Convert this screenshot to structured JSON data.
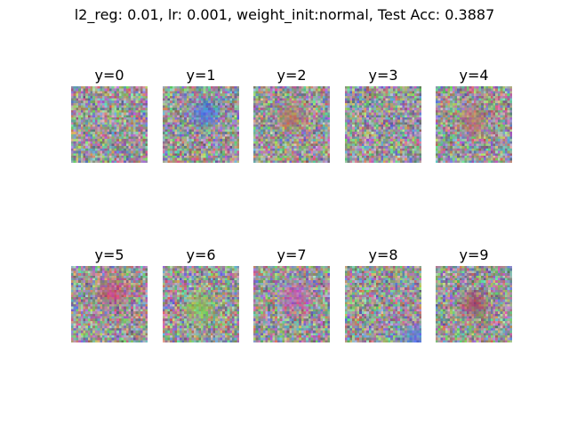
{
  "chart_data": {
    "type": "heatmap",
    "title": "l2_reg: 0.01, lr: 0.001, weight_init:normal, Test Acc: 0.3887",
    "grid_rows": 2,
    "grid_cols": 5,
    "image_size": [
      32,
      32
    ],
    "panels": [
      {
        "label": "y=0",
        "blob": null
      },
      {
        "label": "y=1",
        "blob": {
          "color": "#2a6cff",
          "cx": 0.55,
          "cy": 0.35
        }
      },
      {
        "label": "y=2",
        "blob": {
          "color": "#c0704a",
          "cx": 0.5,
          "cy": 0.4
        }
      },
      {
        "label": "y=3",
        "blob": null
      },
      {
        "label": "y=4",
        "blob": {
          "color": "#c46a5a",
          "cx": 0.5,
          "cy": 0.45
        }
      },
      {
        "label": "y=5",
        "blob": {
          "color": "#e0306a",
          "cx": 0.55,
          "cy": 0.35
        }
      },
      {
        "label": "y=6",
        "blob": {
          "color": "#7fe040",
          "cx": 0.5,
          "cy": 0.55
        }
      },
      {
        "label": "y=7",
        "blob": {
          "color": "#d040c0",
          "cx": 0.55,
          "cy": 0.4
        }
      },
      {
        "label": "y=8",
        "blob": {
          "color": "#4070ff",
          "cx": 0.95,
          "cy": 0.95
        }
      },
      {
        "label": "y=9",
        "blob": {
          "color": "#a03050",
          "cx": 0.5,
          "cy": 0.5
        }
      }
    ]
  }
}
